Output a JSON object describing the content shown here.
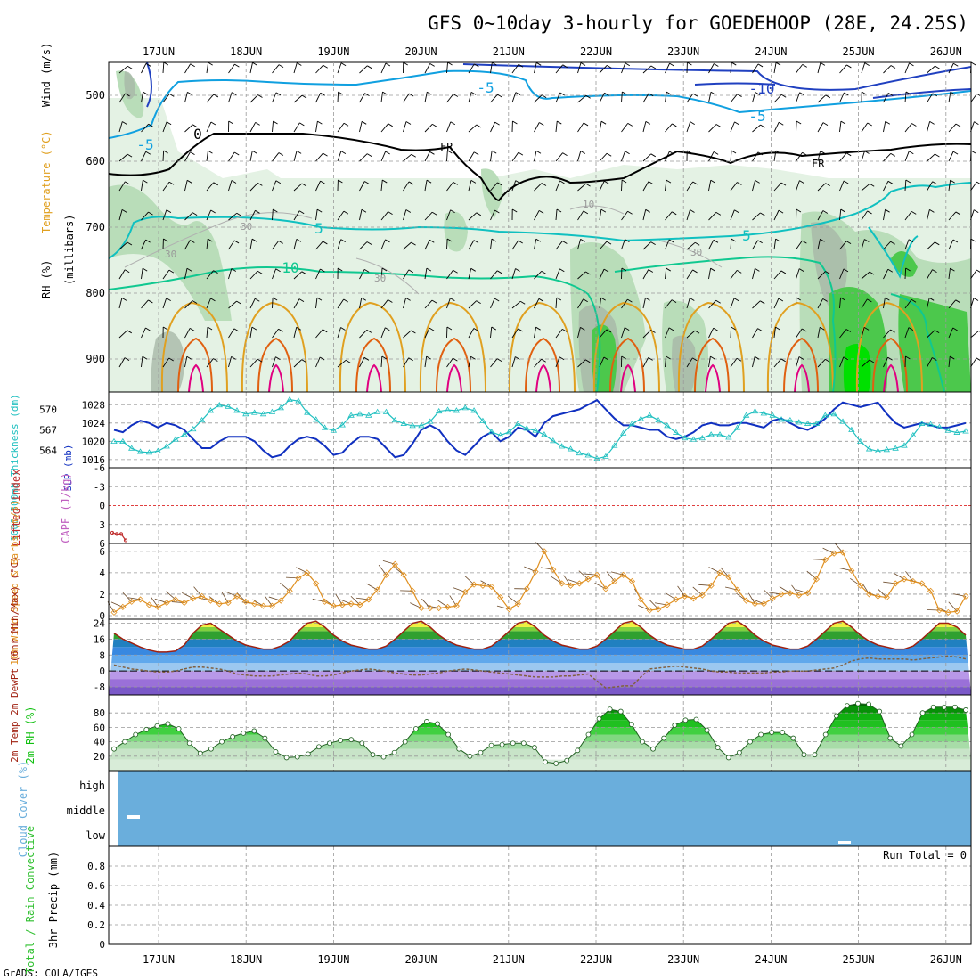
{
  "title": "GFS 0~10day 3-hourly for GOEDEHOOP (28E, 24.25S)",
  "footer": "GrADS: COLA/IGES",
  "dates": [
    "17JUN",
    "18JUN",
    "19JUN",
    "20JUN",
    "21JUN",
    "22JUN",
    "23JUN",
    "24JUN",
    "25JUN",
    "26JUN"
  ],
  "colors": {
    "rh_light": "#e4f2e4",
    "rh_mid": "#b9ddb9",
    "rh_gray": "#a8b8a8",
    "rh_green": "#4cc84c",
    "rh_bright": "#00e000",
    "temp_neg10": "#2040c0",
    "temp_neg5": "#10a0e0",
    "temp_pos5": "#10c0c0",
    "temp_pos10": "#10c890",
    "temp_15": "#e0a020",
    "temp_20": "#e06010",
    "temp_25": "#e00080",
    "freeze": "#000000",
    "slp": "#1030c0",
    "thickness": "#20c0c0",
    "lifted": "#c03030",
    "wind10": "#e09020",
    "temp2m": "#a02010",
    "dew2m": "#806040",
    "rh2m": "#10c010",
    "cloud": "#6aaedc",
    "zero_line": "#e04040"
  },
  "chart_data": [
    {
      "id": "upper",
      "type": "heatmap",
      "title": "RH / Temperature / Wind cross-section",
      "ylabel_rh": "RH (%)",
      "ylabel_temp": "Temperature (°C)",
      "ylabel_wind": "Wind (m/s)",
      "ylabel_level": "(millibars)",
      "ylim": [
        450,
        950
      ],
      "yticks": [
        500,
        600,
        700,
        800,
        900
      ],
      "annotations": [
        "0",
        "FR",
        "FR"
      ],
      "contours": [
        {
          "name": "neg10",
          "label": "-10",
          "values": [
            -10,
            -10,
            -10,
            -10,
            -10,
            -10,
            -10,
            -10,
            -10,
            -10
          ]
        },
        {
          "name": "neg5",
          "label": "-5",
          "values": [
            -5,
            -5,
            -5,
            -5,
            -5,
            -5,
            -5,
            -5,
            -5,
            -5
          ]
        },
        {
          "name": "zero",
          "label": "0",
          "values": [
            0,
            0,
            0,
            0,
            0,
            0,
            0,
            0,
            0,
            0
          ]
        },
        {
          "name": "pos5",
          "label": "5",
          "values": [
            5,
            5,
            5,
            5,
            5,
            5,
            5,
            5,
            5,
            5
          ]
        },
        {
          "name": "pos10",
          "label": "10",
          "values": [
            10,
            10,
            10,
            10,
            10,
            10,
            10,
            10,
            10,
            10
          ]
        }
      ],
      "rh_labels": [
        "30",
        "30",
        "30",
        "10",
        "30"
      ]
    },
    {
      "id": "slp",
      "type": "line",
      "ylabel_left": "1000-500mb Thickness (dm)",
      "ylabel_right": "SLP (mb)",
      "ylim_left": [
        562,
        572
      ],
      "ylim_right": [
        1015,
        1030
      ],
      "yticks_left": [
        564,
        567,
        570
      ],
      "yticks_right": [
        1016,
        1020,
        1024,
        1028
      ],
      "series": [
        {
          "name": "SLP",
          "values": [
            1022.5,
            1022,
            1023.5,
            1024.5,
            1024,
            1023,
            1024,
            1023.5,
            1022.5,
            1020.5,
            1018.5,
            1018.5,
            1020,
            1021,
            1021,
            1021,
            1020,
            1018,
            1016.5,
            1017,
            1019,
            1020.5,
            1021,
            1020.5,
            1019,
            1017,
            1017.5,
            1019.5,
            1021,
            1021,
            1020.5,
            1018.5,
            1016.5,
            1017,
            1019.5,
            1022.5,
            1023.5,
            1022.5,
            1020,
            1018,
            1017,
            1019,
            1021,
            1022,
            1020,
            1021,
            1023,
            1022.5,
            1021,
            1024,
            1025.5,
            1026,
            1026.5,
            1027,
            1028,
            1029,
            1027,
            1025,
            1023.5,
            1023.5,
            1023,
            1022.5,
            1022.5,
            1021,
            1020.5,
            1021,
            1022,
            1023.5,
            1024,
            1023.5,
            1023.5,
            1024,
            1024,
            1023.5,
            1023,
            1024.5,
            1025,
            1024,
            1023,
            1022.5,
            1023.5,
            1025,
            1027,
            1028.5,
            1028,
            1027.5,
            1028,
            1028.5,
            1026,
            1024,
            1023,
            1023.5,
            1024,
            1023.5,
            1023,
            1023,
            1023.5,
            1024
          ]
        },
        {
          "name": "Thickness",
          "values": [
            565.3,
            565.3,
            564.3,
            563.8,
            563.7,
            563.9,
            564.6,
            565.6,
            566.3,
            567.1,
            568.4,
            569.8,
            570.6,
            570.4,
            569.8,
            569.3,
            569.5,
            569.3,
            569.6,
            570.2,
            571.4,
            571.2,
            569.5,
            568.5,
            567.3,
            566.9,
            567.7,
            569.1,
            569.3,
            569.1,
            569.6,
            569.6,
            568.4,
            567.9,
            567.6,
            567.6,
            568.2,
            569.7,
            569.9,
            569.8,
            570.2,
            569.8,
            568.3,
            566.7,
            566.2,
            566.7,
            567.9,
            567.2,
            566.9,
            566.3,
            565.4,
            564.6,
            564.2,
            563.6,
            563.3,
            562.8,
            563.1,
            564.7,
            566.5,
            567.9,
            568.6,
            569.1,
            568.4,
            567.6,
            566.6,
            565.8,
            565.6,
            565.8,
            566.3,
            566.3,
            565.9,
            567.3,
            569.1,
            569.7,
            569.4,
            569.1,
            568.5,
            568.4,
            568.1,
            567.9,
            567.9,
            569.1,
            569.3,
            568.2,
            567.0,
            565.3,
            564.2,
            563.9,
            564.1,
            564.3,
            564.7,
            566.2,
            567.9,
            567.8,
            567.4,
            566.9,
            566.6,
            566.8
          ]
        }
      ]
    },
    {
      "id": "cape",
      "type": "line",
      "ylabel_left": "Lifted Index",
      "ylabel_right": "CAPE (J/kg)",
      "ylim": [
        -6,
        6
      ],
      "yticks": [
        -6,
        -3,
        0,
        3,
        6
      ],
      "ytick_labels": [
        "-6",
        "-3",
        "0",
        "3",
        "6"
      ],
      "series": [
        {
          "name": "Lifted Index",
          "values": [
            4.3,
            4.5,
            4.5,
            5.5
          ]
        }
      ]
    },
    {
      "id": "wind10",
      "type": "line",
      "ylabel": "10m Wind Speed & Barbs (m/s)",
      "ylim": [
        0,
        6.4
      ],
      "yticks": [
        0,
        2,
        4,
        6
      ],
      "series": [
        {
          "name": "Wind Speed",
          "values": [
            0.3,
            0.8,
            1.3,
            1.5,
            1.0,
            0.8,
            1.2,
            1.5,
            1.2,
            1.6,
            1.8,
            1.4,
            1.1,
            1.2,
            1.8,
            1.3,
            1.1,
            0.9,
            0.9,
            1.4,
            2.3,
            3.5,
            4.0,
            3.0,
            1.3,
            0.9,
            1.0,
            1.1,
            1.0,
            1.5,
            2.4,
            3.8,
            4.8,
            3.8,
            2.3,
            0.7,
            0.7,
            0.7,
            0.8,
            0.9,
            2.2,
            2.9,
            2.8,
            2.7,
            1.7,
            0.6,
            1.1,
            2.5,
            4.1,
            6.0,
            4.3,
            3.0,
            2.8,
            3.0,
            3.4,
            3.8,
            2.5,
            3.2,
            3.8,
            3.2,
            1.5,
            0.5,
            0.6,
            1.0,
            1.5,
            1.8,
            1.6,
            1.9,
            2.8,
            4.0,
            3.6,
            2.4,
            1.4,
            1.1,
            1.1,
            1.6,
            2.0,
            2.1,
            1.9,
            2.1,
            3.4,
            5.2,
            5.8,
            5.9,
            4.2,
            2.8,
            2.0,
            1.8,
            1.7,
            3.0,
            3.4,
            3.2,
            3.0,
            2.3,
            0.5,
            0.3,
            0.4,
            1.8
          ]
        }
      ]
    },
    {
      "id": "temp2m",
      "type": "area",
      "ylabel": "2m Temp 2m DewPt (6hr Min/Max) (°C)",
      "ylim": [
        -12,
        26
      ],
      "yticks": [
        -8,
        0,
        8,
        16,
        24
      ],
      "series": [
        {
          "name": "Temp",
          "values": [
            19,
            16,
            14,
            12,
            10.5,
            9.5,
            9.5,
            10,
            13,
            19,
            23,
            24,
            21,
            18,
            15,
            13,
            12,
            11,
            11,
            12.5,
            15,
            20,
            24,
            25,
            22,
            18,
            15,
            13,
            12,
            11,
            11,
            12.5,
            16,
            20,
            24,
            25,
            22,
            18,
            15,
            13,
            12,
            11,
            11,
            12.5,
            16,
            20,
            24,
            25,
            22,
            18,
            15,
            13,
            12,
            11,
            11,
            12.5,
            16,
            20,
            24,
            25,
            22,
            18,
            15,
            13,
            12,
            11,
            11,
            12.5,
            16,
            20,
            24,
            25,
            22,
            18,
            15,
            13,
            12,
            11,
            11,
            12.5,
            16,
            20,
            24,
            25,
            22,
            18,
            15,
            13,
            12,
            11,
            11,
            12.5,
            16,
            20,
            24,
            24,
            22,
            18
          ]
        },
        {
          "name": "DewPt",
          "values": [
            3,
            2,
            1,
            0.5,
            0,
            -0.5,
            -0.5,
            0,
            1,
            2,
            2,
            1.5,
            1,
            0,
            -1.5,
            -2,
            -2.5,
            -2.5,
            -2.5,
            -2,
            -1.5,
            -1,
            -1.5,
            -2.5,
            -2.5,
            -2,
            -1,
            0,
            0.5,
            1,
            0.5,
            0,
            -1,
            -1.5,
            -2,
            -2,
            -1.5,
            -1,
            0,
            0.5,
            1,
            0.5,
            0,
            -0.5,
            -1,
            -1.5,
            -2,
            -2.5,
            -3,
            -3,
            -3,
            -2.5,
            -2.5,
            -2,
            -1.5,
            -5,
            -8.5,
            -8,
            -7.5,
            -7.5,
            -3,
            1,
            1.5,
            2,
            2.5,
            2,
            1.5,
            1,
            0,
            -0.5,
            -0.5,
            -1,
            -1,
            -1,
            -1,
            -0.5,
            -0.5,
            0,
            0,
            0,
            0.5,
            1,
            1.5,
            3,
            5,
            6,
            6.5,
            6,
            6,
            6,
            6,
            5.5,
            6,
            6.5,
            7,
            7.5,
            7,
            6
          ]
        }
      ]
    },
    {
      "id": "rh2m",
      "type": "area",
      "ylabel": "2m RH (%)",
      "ylim": [
        0,
        100
      ],
      "yticks": [
        20,
        40,
        60,
        80
      ],
      "series": [
        {
          "name": "RH",
          "values": [
            30,
            40,
            50,
            57,
            62,
            65,
            58,
            38,
            24,
            30,
            40,
            47,
            52,
            55,
            45,
            26,
            18,
            19,
            23,
            33,
            38,
            42,
            43,
            38,
            22,
            19,
            25,
            40,
            58,
            68,
            65,
            50,
            30,
            20,
            25,
            35,
            36,
            38,
            38,
            32,
            12,
            10,
            14,
            28,
            50,
            72,
            85,
            82,
            64,
            40,
            30,
            45,
            63,
            70,
            71,
            56,
            32,
            18,
            25,
            40,
            50,
            53,
            53,
            45,
            22,
            22,
            50,
            76,
            90,
            93,
            92,
            82,
            45,
            34,
            50,
            80,
            88,
            88,
            88,
            84
          ]
        }
      ]
    },
    {
      "id": "cloud",
      "type": "area",
      "ylabel": "Cloud Cover (%)",
      "ytick_labels": [
        "high",
        "middle",
        "low"
      ]
    },
    {
      "id": "precip",
      "type": "bar",
      "ylabel_left": "Total / Rain Convective",
      "ylabel_right": "3hr Precip (mm)",
      "ylim": [
        0,
        1
      ],
      "yticks": [
        0,
        0.2,
        0.4,
        0.6,
        0.8
      ],
      "ytick_labels": [
        "0",
        "0.2",
        "0.4",
        "0.6",
        "0.8"
      ],
      "run_total": "Run Total = 0",
      "values": []
    }
  ]
}
